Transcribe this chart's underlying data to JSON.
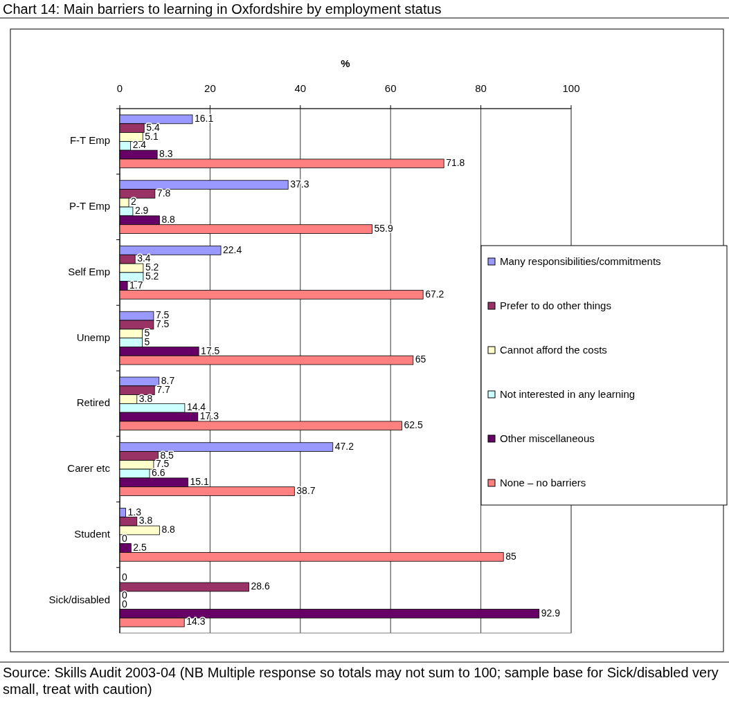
{
  "chart_data": {
    "type": "bar",
    "orientation": "horizontal",
    "title": "Chart 14: Main barriers to learning in Oxfordshire by employment status",
    "xlabel": "%",
    "categories": [
      "F-T Emp",
      "P-T Emp",
      "Self Emp",
      "Unemp",
      "Retired",
      "Carer etc",
      "Student",
      "Sick/disabled"
    ],
    "series": [
      {
        "name": "Many responsibilities/commitments",
        "color": "#9999ff",
        "values": [
          16.1,
          37.3,
          22.4,
          7.5,
          8.7,
          47.2,
          1.3,
          0
        ]
      },
      {
        "name": "Prefer to do other things",
        "color": "#993366",
        "values": [
          5.4,
          7.8,
          3.4,
          7.5,
          7.7,
          8.5,
          3.8,
          28.6
        ]
      },
      {
        "name": "Cannot afford the costs",
        "color": "#ffffcc",
        "values": [
          5.1,
          2,
          5.2,
          5,
          3.8,
          7.5,
          8.8,
          0
        ]
      },
      {
        "name": "Not interested in any learning",
        "color": "#ccffff",
        "values": [
          2.4,
          2.9,
          5.2,
          5,
          14.4,
          6.6,
          0,
          0
        ]
      },
      {
        "name": "Other miscellaneous",
        "color": "#660066",
        "values": [
          8.3,
          8.8,
          1.7,
          17.5,
          17.3,
          15.1,
          2.5,
          92.9
        ]
      },
      {
        "name": "None – no barriers",
        "color": "#ff8080",
        "values": [
          71.8,
          55.9,
          67.2,
          65,
          62.5,
          38.7,
          85,
          14.3
        ]
      }
    ],
    "xlim": [
      0,
      100
    ],
    "xticks": [
      0,
      20,
      40,
      60,
      80,
      100
    ],
    "grid": "x",
    "legend": "right",
    "data_labels": true,
    "annotations": [
      "Source: Skills Audit 2003-04 (NB Multiple response so totals may not sum to 100; sample base for Sick/disabled very small, treat with caution)"
    ]
  }
}
